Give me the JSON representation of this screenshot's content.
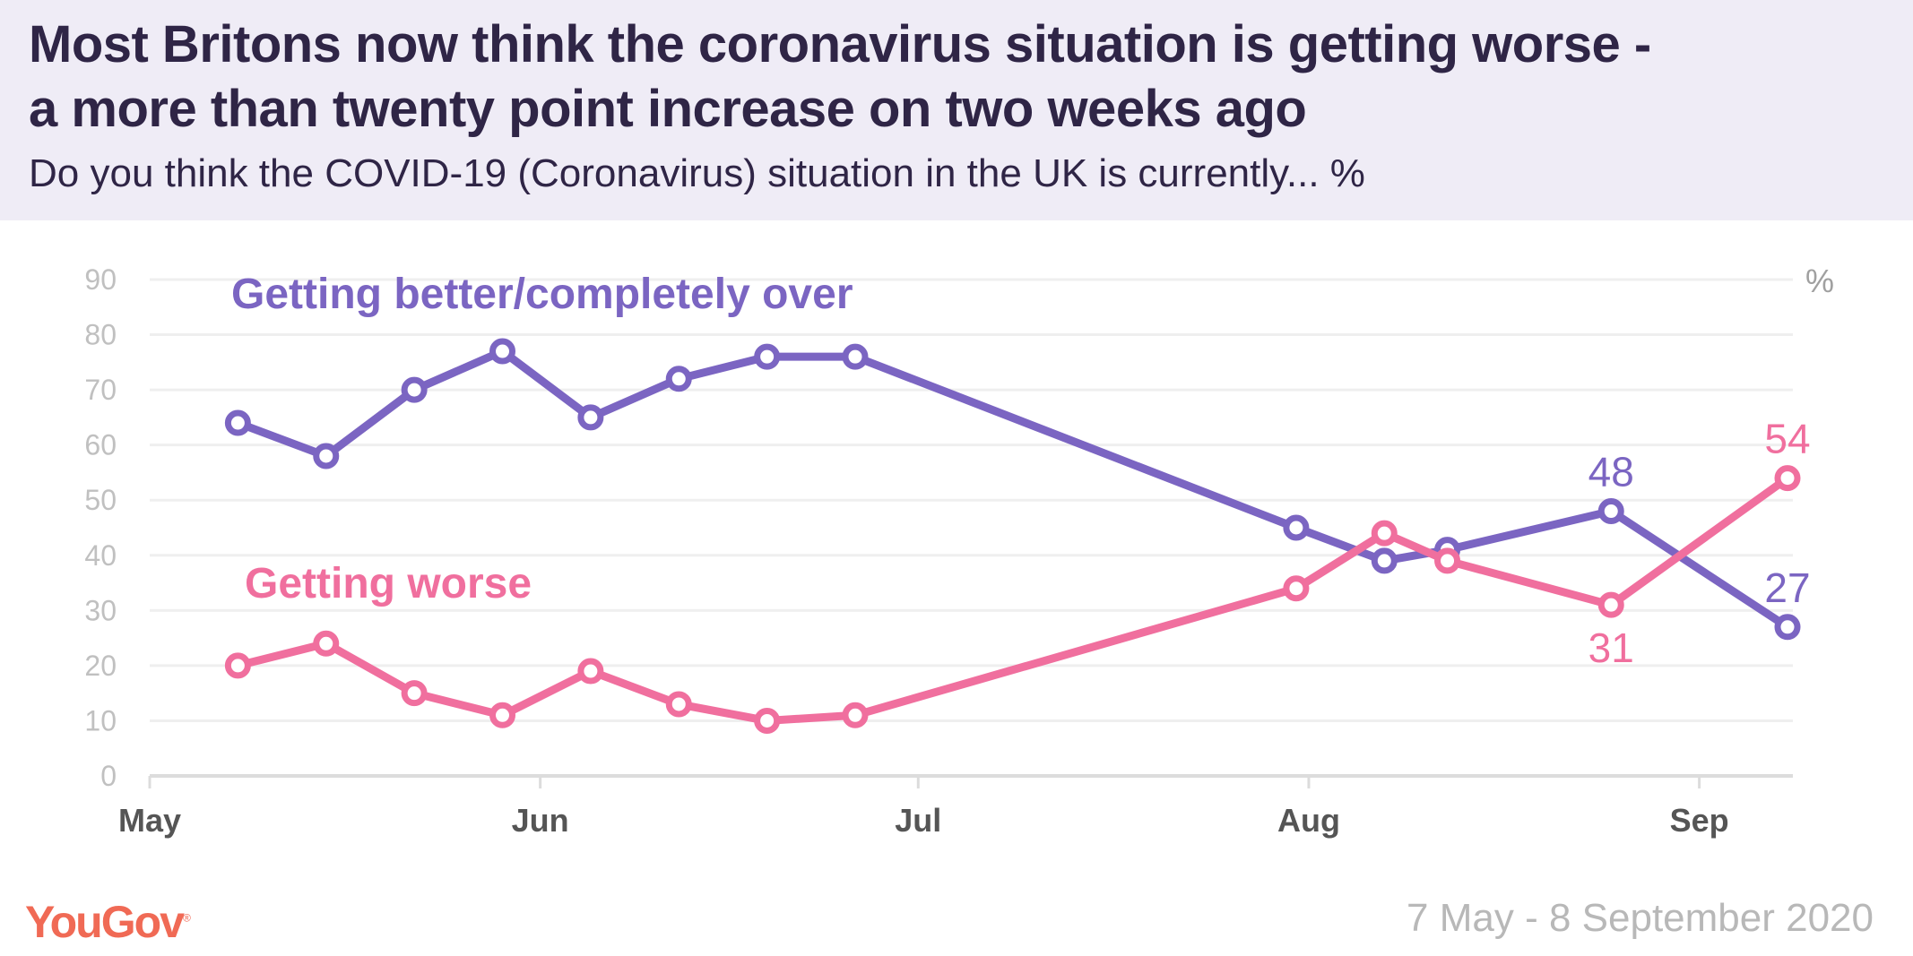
{
  "header": {
    "title_line1": "Most Britons now think the coronavirus situation is getting worse -",
    "title_line2": "a more than twenty point increase on two weeks ago",
    "subtitle": "Do you think the COVID-19 (Coronavirus) situation in the UK is currently... %"
  },
  "footer": {
    "logo": "YouGov",
    "logo_mark": "®",
    "date_range": "7 May - 8 September 2020"
  },
  "chart_data": {
    "type": "line",
    "title": "Most Britons now think the coronavirus situation is getting worse - a more than twenty point increase on two weeks ago",
    "subtitle": "Do you think the COVID-19 (Coronavirus) situation in the UK is currently... %",
    "xlabel": "",
    "ylabel": "%",
    "unit_label": "%",
    "ylim": [
      0,
      90
    ],
    "yticks": [
      0,
      10,
      20,
      30,
      40,
      50,
      60,
      70,
      80,
      90
    ],
    "grid": true,
    "x_axis": {
      "type": "date",
      "start": "2020-05-01",
      "end": "2020-09-08",
      "tick_labels": [
        {
          "label": "May",
          "date": "2020-05-01"
        },
        {
          "label": "Jun",
          "date": "2020-06-01"
        },
        {
          "label": "Jul",
          "date": "2020-07-01"
        },
        {
          "label": "Aug",
          "date": "2020-08-01"
        },
        {
          "label": "Sep",
          "date": "2020-09-01"
        }
      ]
    },
    "x": [
      "2020-05-08",
      "2020-05-15",
      "2020-05-22",
      "2020-05-29",
      "2020-06-05",
      "2020-06-12",
      "2020-06-19",
      "2020-06-26",
      "2020-07-31",
      "2020-08-07",
      "2020-08-12",
      "2020-08-25",
      "2020-09-08"
    ],
    "series": [
      {
        "name": "Getting better/completely over",
        "color": "#7b65c2",
        "values": [
          64,
          58,
          70,
          77,
          65,
          72,
          76,
          76,
          45,
          39,
          41,
          48,
          27
        ],
        "labeled_points": [
          {
            "index": 11,
            "text": "48",
            "position": "above"
          },
          {
            "index": 12,
            "text": "27",
            "position": "above"
          }
        ]
      },
      {
        "name": "Getting worse",
        "color": "#f06f9e",
        "values": [
          20,
          24,
          15,
          11,
          19,
          13,
          10,
          11,
          34,
          44,
          39,
          31,
          54
        ],
        "labeled_points": [
          {
            "index": 11,
            "text": "31",
            "position": "below"
          },
          {
            "index": 12,
            "text": "54",
            "position": "above"
          }
        ]
      }
    ],
    "legend": "inline labels, top-left"
  }
}
